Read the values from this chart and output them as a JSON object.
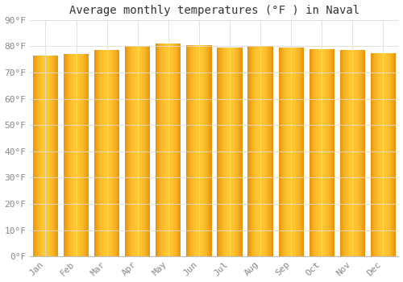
{
  "title": "Average monthly temperatures (°F ) in Naval",
  "months": [
    "Jan",
    "Feb",
    "Mar",
    "Apr",
    "May",
    "Jun",
    "Jul",
    "Aug",
    "Sep",
    "Oct",
    "Nov",
    "Dec"
  ],
  "values": [
    76.5,
    77.0,
    78.5,
    80.0,
    81.0,
    80.5,
    79.5,
    80.0,
    79.5,
    79.0,
    78.5,
    77.5
  ],
  "bar_color_left": "#E8900A",
  "bar_color_center": "#FFCC44",
  "bar_color_right": "#E8900A",
  "background_color": "#FFFFFF",
  "grid_color": "#DDDDDD",
  "text_color": "#888888",
  "title_color": "#333333",
  "ylim": [
    0,
    90
  ],
  "ytick_interval": 10,
  "title_fontsize": 10,
  "tick_fontsize": 8,
  "bar_width": 0.82
}
